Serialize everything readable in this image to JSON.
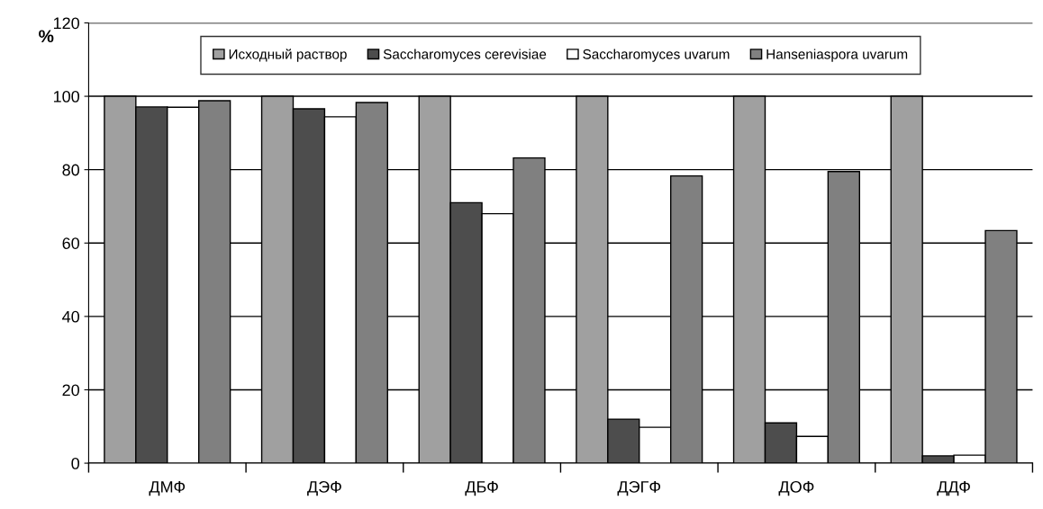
{
  "chart_data": {
    "type": "bar",
    "ylabel": "%",
    "categories": [
      "ДМФ",
      "ДЭФ",
      "ДБФ",
      "ДЭГФ",
      "ДОФ",
      "ДДФ"
    ],
    "series": [
      {
        "name": "Исходный раствор",
        "color": "#a0a0a0",
        "values": [
          100,
          100,
          100,
          100,
          100,
          100
        ]
      },
      {
        "name": "Saccharomyces cerevisiae",
        "color": "#4d4d4d",
        "values": [
          97.1,
          96.6,
          71,
          12,
          11,
          2
        ]
      },
      {
        "name": "Saccharomyces uvarum",
        "color": "#ffffff",
        "values": [
          97,
          94.4,
          68,
          9.8,
          7.3,
          2.2
        ]
      },
      {
        "name": "Hanseniaspora uvarum",
        "color": "#808080",
        "values": [
          98.8,
          98.3,
          83.2,
          78.3,
          79.5,
          63.4
        ]
      }
    ],
    "ylim": [
      0,
      120
    ],
    "yticks": [
      0,
      20,
      40,
      60,
      80,
      100,
      120
    ],
    "grid": "y",
    "legend": "top"
  }
}
